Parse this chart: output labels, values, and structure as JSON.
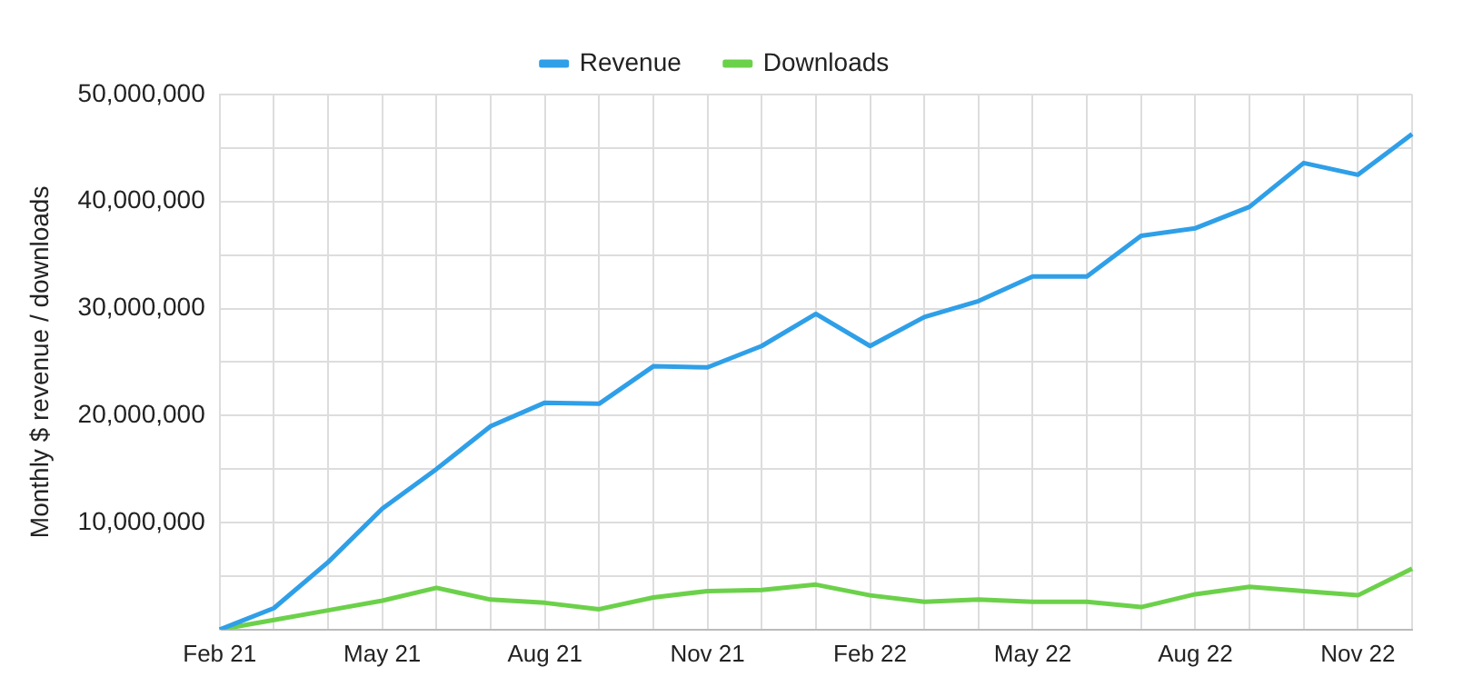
{
  "chart_data": {
    "type": "line",
    "ylabel": "Monthly $ revenue / downloads",
    "categories": [
      "Feb 21",
      null,
      null,
      "May 21",
      null,
      null,
      "Aug 21",
      null,
      null,
      "Nov 21",
      null,
      null,
      "Feb 22",
      null,
      null,
      "May 22",
      null,
      null,
      "Aug 22",
      null,
      null,
      "Nov 22",
      null
    ],
    "series": [
      {
        "name": "Revenue",
        "color": "#2f9fe8",
        "values": [
          0,
          2000000,
          6300000,
          11300000,
          15000000,
          19000000,
          21200000,
          21100000,
          24600000,
          24500000,
          26500000,
          29500000,
          26500000,
          29200000,
          30700000,
          33000000,
          33000000,
          36800000,
          37500000,
          39500000,
          43600000,
          42500000,
          46300000
        ]
      },
      {
        "name": "Downloads",
        "color": "#6cd14a",
        "values": [
          0,
          900000,
          1800000,
          2700000,
          3900000,
          2800000,
          2500000,
          1900000,
          3000000,
          3600000,
          3700000,
          4200000,
          3200000,
          2600000,
          2800000,
          2600000,
          2600000,
          2100000,
          3300000,
          4000000,
          3600000,
          3200000,
          5700000
        ]
      }
    ],
    "ylim": [
      0,
      50000000
    ],
    "yticks": [
      {
        "value": 0,
        "label": null
      },
      {
        "value": 5000000,
        "label": null
      },
      {
        "value": 10000000,
        "label": "10,000,000"
      },
      {
        "value": 15000000,
        "label": null
      },
      {
        "value": 20000000,
        "label": "20,000,000"
      },
      {
        "value": 25000000,
        "label": null
      },
      {
        "value": 30000000,
        "label": "30,000,000"
      },
      {
        "value": 35000000,
        "label": null
      },
      {
        "value": 40000000,
        "label": "40,000,000"
      },
      {
        "value": 45000000,
        "label": null
      },
      {
        "value": 50000000,
        "label": "50,000,000"
      }
    ],
    "grid": true,
    "legend": "top",
    "marker": "none",
    "line_style": "solid"
  }
}
